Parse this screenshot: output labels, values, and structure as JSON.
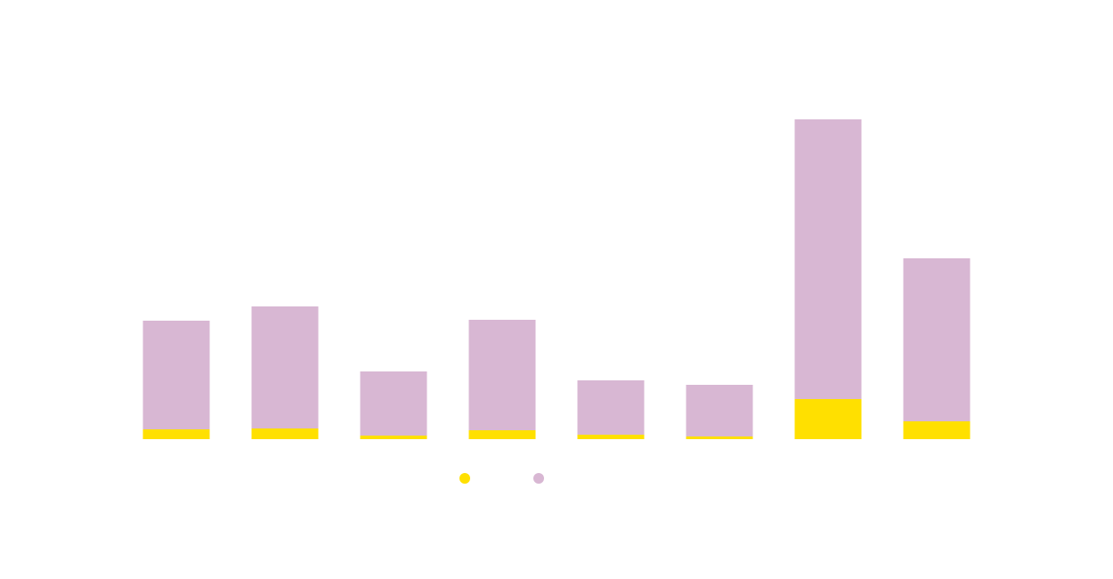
{
  "chart_data": {
    "type": "stacked_bar",
    "categories": [
      null,
      null,
      null,
      null,
      null,
      null,
      null,
      null
    ],
    "series": [
      {
        "color": "#ffe000",
        "values": [
          11,
          12,
          4,
          10,
          5,
          3,
          45,
          20
        ]
      },
      {
        "color": "#d8b7d3",
        "values": [
          122,
          137,
          72,
          124,
          61,
          58,
          314,
          183
        ]
      }
    ],
    "ylim": [
      0,
      400
    ],
    "legend": "bottom"
  }
}
